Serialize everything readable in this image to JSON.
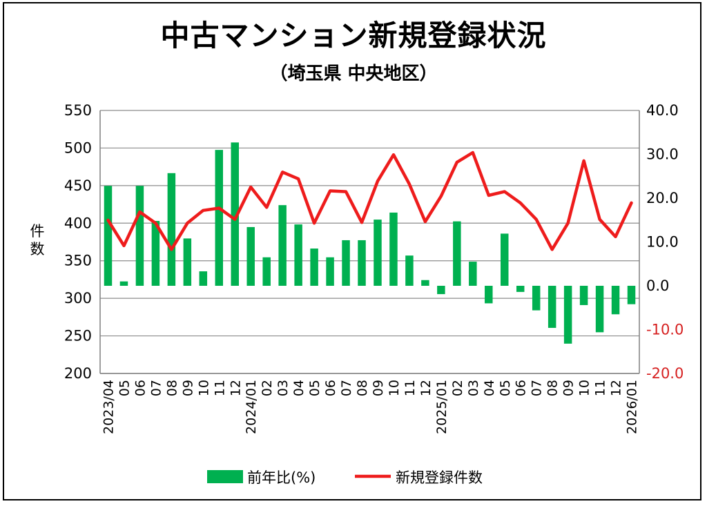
{
  "chart_data": {
    "type": "bar+line",
    "title": "中古マンション新規登録状況",
    "subtitle": "（埼玉県 中央地区）",
    "ylabel_left": "件数",
    "ylim_left": [
      200,
      550
    ],
    "yticks_left": [
      "550",
      "500",
      "450",
      "400",
      "350",
      "300",
      "250",
      "200"
    ],
    "ylim_right": [
      -20,
      40
    ],
    "yticks_right": [
      "40.0",
      "30.0",
      "20.0",
      "10.0",
      "0.0",
      "-10.0",
      "-20.0"
    ],
    "x_labels": [
      "2023/04",
      "05",
      "06",
      "07",
      "08",
      "09",
      "10",
      "11",
      "12",
      "2024/01",
      "02",
      "03",
      "04",
      "05",
      "06",
      "07",
      "08",
      "09",
      "10",
      "11",
      "12",
      "2025/01",
      "02",
      "03",
      "04",
      "05",
      "06",
      "07",
      "08",
      "09",
      "10",
      "11",
      "12",
      "2026/01"
    ],
    "series": [
      {
        "name": "前年比(%)",
        "type": "bar",
        "axis": "right",
        "color": "#00b050",
        "values": [
          22.8,
          1.0,
          22.8,
          14.8,
          25.7,
          10.8,
          3.3,
          31.0,
          32.7,
          13.4,
          6.5,
          18.4,
          14.0,
          8.5,
          6.5,
          10.4,
          10.4,
          15.1,
          16.7,
          6.9,
          1.3,
          -1.9,
          14.7,
          5.5,
          -4.0,
          11.9,
          -1.4,
          -5.6,
          -9.6,
          -13.2,
          -4.4,
          -10.6,
          -6.5,
          -4.2
        ]
      },
      {
        "name": "新規登録件数",
        "type": "line",
        "axis": "left",
        "color": "#ee1c1c",
        "values": [
          404,
          370,
          415,
          400,
          365,
          400,
          417,
          420,
          405,
          448,
          421,
          468,
          459,
          400,
          443,
          442,
          401,
          456,
          491,
          452,
          402,
          436,
          481,
          494,
          437,
          442,
          427,
          405,
          365,
          400,
          483,
          405,
          382,
          427
        ]
      }
    ],
    "legend": [
      {
        "label": "前年比(%)",
        "color": "#00b050",
        "kind": "bar"
      },
      {
        "label": "新規登録件数",
        "color": "#ee1c1c",
        "kind": "line"
      }
    ],
    "right_axis_negative_color": "#d62020",
    "grid": true
  }
}
